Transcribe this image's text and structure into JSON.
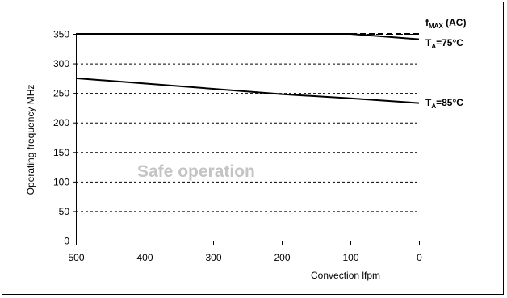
{
  "chart_data": {
    "type": "line",
    "xlabel": "Convection lfpm",
    "ylabel": "Operating frequency MHz",
    "xlim": [
      500,
      0
    ],
    "ylim": [
      0,
      350
    ],
    "x_ticks": [
      500,
      400,
      300,
      200,
      100,
      0
    ],
    "y_ticks": [
      0,
      50,
      100,
      150,
      200,
      250,
      300,
      350
    ],
    "grid": "horizontal-dashed",
    "annotation": "Safe operation",
    "series": [
      {
        "label_main": "f",
        "label_sub": "MAX",
        "label_rest": " (AC)",
        "style": "dashed",
        "x": [
          500,
          0
        ],
        "y": [
          350,
          350
        ]
      },
      {
        "label_main": "T",
        "label_sub": "A",
        "label_rest": "=75°C",
        "style": "solid",
        "x": [
          500,
          100,
          0
        ],
        "y": [
          350,
          350,
          341
        ]
      },
      {
        "label_main": "T",
        "label_sub": "A",
        "label_rest": "=85°C",
        "style": "solid",
        "x": [
          500,
          400,
          300,
          200,
          100,
          0
        ],
        "y": [
          275,
          266,
          257,
          248,
          241,
          233
        ]
      }
    ]
  }
}
